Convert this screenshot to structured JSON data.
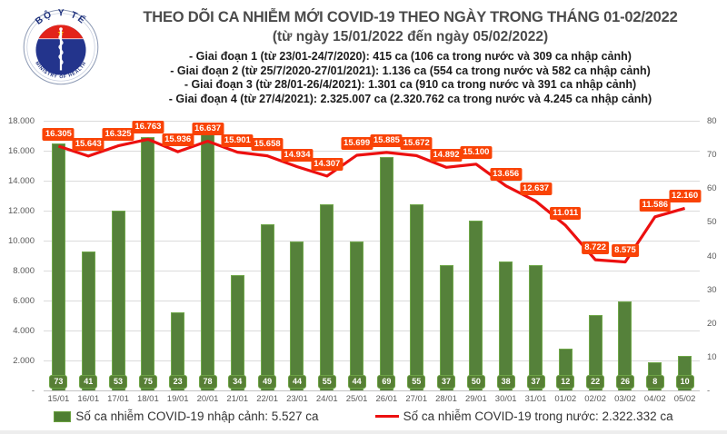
{
  "header": {
    "title": "THEO DÕI CA NHIỄM MỚI COVID-19 THEO NGÀY TRONG THÁNG 01-02/2022",
    "subtitle": "(từ ngày 15/01/2022 đến ngày 05/02/2022)",
    "bullets": [
      "- Giai đoạn 1 (từ 23/01-24/7/2020): 415 ca (106 ca trong nước và 309 ca nhập cảnh)",
      "- Giai đoạn 2 (từ 25/7/2020-27/01/2021): 1.136 ca (554 ca trong nước và 582 ca nhập cảnh)",
      "- Giai đoạn 3 (từ 28/01-26/4/2021): 1.301 ca (910 ca trong nước và 391 ca nhập cảnh)",
      "- Giai đoạn 4 (từ 27/4/2021): 2.325.007 ca (2.320.762 ca trong nước và 4.245 ca nhập cảnh)"
    ]
  },
  "logo": {
    "top_text": "BỘ Y TẾ",
    "bottom_text": "MINISTRY OF HEALTH",
    "star": "★"
  },
  "chart_data": {
    "type": "combo",
    "title": "THEO DÕI CA NHIỄM MỚI COVID-19 THEO NGÀY TRONG THÁNG 01-02/2022",
    "categories": [
      "15/01",
      "16/01",
      "17/01",
      "18/01",
      "19/01",
      "20/01",
      "21/01",
      "22/01",
      "23/01",
      "24/01",
      "25/01",
      "26/01",
      "27/01",
      "28/01",
      "29/01",
      "30/01",
      "31/01",
      "01/02",
      "02/02",
      "03/02",
      "04/02",
      "05/02"
    ],
    "series": [
      {
        "name": "Số ca nhiễm COVID-19 nhập cảnh",
        "type": "bar",
        "axis": "right",
        "values": [
          73,
          41,
          53,
          75,
          23,
          78,
          34,
          49,
          44,
          55,
          44,
          69,
          55,
          37,
          50,
          38,
          37,
          12,
          22,
          26,
          8,
          10
        ],
        "labels": [
          "73",
          "41",
          "53",
          "75",
          "23",
          "78",
          "34",
          "49",
          "44",
          "55",
          "44",
          "69",
          "55",
          "37",
          "50",
          "38",
          "37",
          "12",
          "22",
          "26",
          "8",
          "10"
        ]
      },
      {
        "name": "Số ca nhiễm COVID-19 trong nước",
        "type": "line",
        "axis": "left",
        "values": [
          16305,
          15643,
          16325,
          16763,
          15936,
          16637,
          15901,
          15658,
          14934,
          14307,
          15699,
          15885,
          15672,
          14892,
          15100,
          13656,
          12637,
          11011,
          8722,
          8575,
          11586,
          12160
        ],
        "labels": [
          "16.305",
          "15.643",
          "16.325",
          "16.763",
          "15.936",
          "16.637",
          "15.901",
          "15.658",
          "14.934",
          "14.307",
          "15.699",
          "15.885",
          "15.672",
          "14.892",
          "15.100",
          "13.656",
          "12.637",
          "11.011",
          "8.722",
          "8.575",
          "11.586",
          "12.160"
        ]
      }
    ],
    "left_axis": {
      "min": 0,
      "max": 18000,
      "tick_labels": [
        "18.000",
        "16.000",
        "14.000",
        "12.000",
        "10.000",
        "8.000",
        "6.000",
        "4.000",
        "2.000",
        "-"
      ]
    },
    "right_axis": {
      "min": 0,
      "max": 80,
      "tick_labels": [
        "80",
        "70",
        "60",
        "50",
        "40",
        "30",
        "20",
        "10",
        "-"
      ]
    },
    "grid": true,
    "legend_position": "bottom",
    "colors": {
      "bar_fill": "#55813a",
      "bar_border": "#70a84a",
      "bar_label_bg": "#577f35",
      "line": "#ec1010",
      "line_label_bg": "#f94306",
      "grid": "#dbdbdb",
      "axis_text": "#595959"
    }
  },
  "legend": {
    "imported": "Số ca nhiễm COVID-19 nhập cảnh: 5.527 ca",
    "domestic": "Số ca nhiễm COVID-19 trong nước: 2.322.332 ca"
  }
}
